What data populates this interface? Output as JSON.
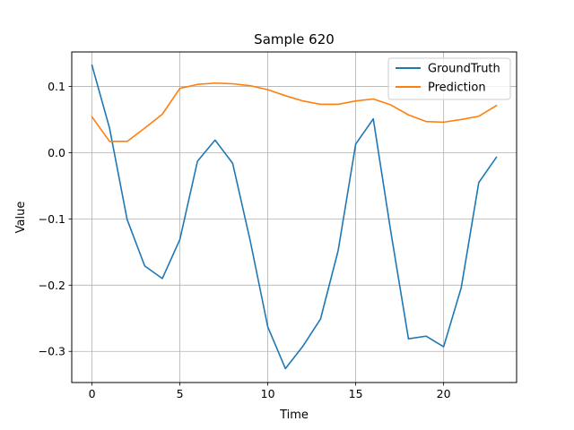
{
  "chart_data": {
    "type": "line",
    "title": "Sample 620",
    "xlabel": "Time",
    "ylabel": "Value",
    "xlim": [
      -1.15,
      24.15
    ],
    "ylim": [
      -0.347,
      0.152
    ],
    "x_ticks": [
      0,
      5,
      10,
      15,
      20
    ],
    "x_tick_labels": [
      "0",
      "5",
      "10",
      "15",
      "20"
    ],
    "y_ticks": [
      0.1,
      0.0,
      -0.1,
      -0.2,
      -0.3
    ],
    "y_tick_labels": [
      "0.1",
      "0.0",
      "−0.1",
      "−0.2",
      "−0.3"
    ],
    "grid": true,
    "legend_position": "upper right",
    "x": [
      0,
      1,
      2,
      3,
      4,
      5,
      6,
      7,
      8,
      9,
      10,
      11,
      12,
      13,
      14,
      15,
      16,
      17,
      18,
      19,
      20,
      21,
      22,
      23
    ],
    "series": [
      {
        "name": "GroundTruth",
        "color": "#1f77b4",
        "values": [
          0.132,
          0.037,
          -0.101,
          -0.171,
          -0.19,
          -0.131,
          -0.013,
          0.019,
          -0.016,
          -0.133,
          -0.263,
          -0.326,
          -0.292,
          -0.251,
          -0.148,
          0.013,
          0.051,
          -0.12,
          -0.281,
          -0.277,
          -0.293,
          -0.204,
          -0.045,
          -0.007
        ]
      },
      {
        "name": "Prediction",
        "color": "#ff7f0e",
        "values": [
          0.054,
          0.017,
          0.017,
          0.037,
          0.058,
          0.097,
          0.103,
          0.105,
          0.104,
          0.101,
          0.095,
          0.086,
          0.078,
          0.073,
          0.073,
          0.078,
          0.081,
          0.072,
          0.057,
          0.047,
          0.046,
          0.05,
          0.055,
          0.071
        ]
      }
    ]
  }
}
